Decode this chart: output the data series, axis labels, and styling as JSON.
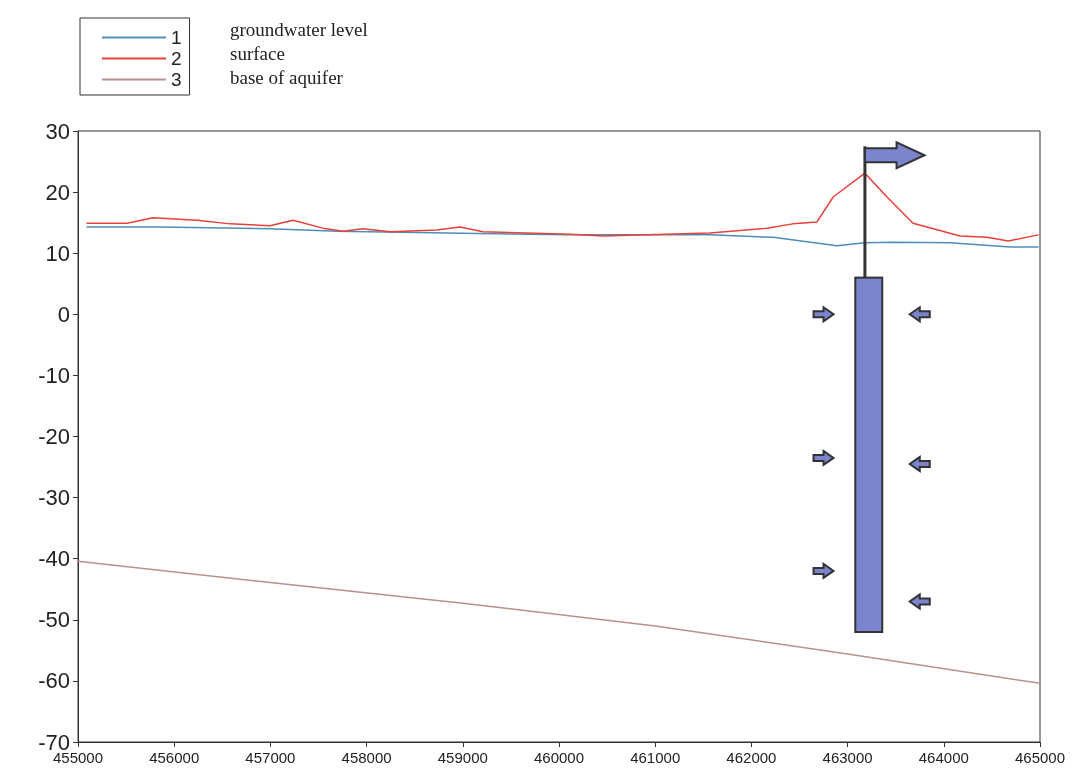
{
  "chart_data": {
    "type": "line",
    "xlim": [
      455000,
      465000
    ],
    "xticks": [
      455000,
      456000,
      457000,
      458000,
      459000,
      460000,
      461000,
      462000,
      463000,
      464000,
      465000
    ],
    "ylim": [
      -70,
      30
    ],
    "yticks": [
      -70,
      -60,
      -50,
      -40,
      -30,
      -20,
      -10,
      0,
      10,
      20,
      30
    ],
    "grid": false,
    "legend": "top left",
    "marker": "none",
    "line_style": "solid",
    "annotations": [
      "groundwater level",
      "surface",
      "base of aquifer"
    ],
    "series": [
      {
        "name": "1",
        "color": "#4a90b8",
        "x": [
          455094,
          455850,
          456995,
          457690,
          460115,
          461570,
          462225,
          462890,
          463180,
          463470,
          464065,
          464690,
          464980
        ],
        "values": [
          14.3,
          14.3,
          14.0,
          13.6,
          13.0,
          13.0,
          12.6,
          11.2,
          11.7,
          11.8,
          11.7,
          11.0,
          11.0
        ]
      },
      {
        "name": "2",
        "color": "#e8403a",
        "x": [
          455094,
          455510,
          455780,
          456240,
          456580,
          456995,
          457235,
          457545,
          457755,
          457960,
          458245,
          458730,
          458970,
          459210,
          460115,
          460460,
          461570,
          462160,
          462430,
          462680,
          462850,
          463180,
          463410,
          463680,
          464170,
          464450,
          464670,
          464980
        ],
        "values": [
          14.9,
          14.9,
          15.8,
          15.4,
          14.8,
          14.5,
          15.4,
          14.1,
          13.6,
          14.0,
          13.5,
          13.8,
          14.3,
          13.5,
          13.1,
          12.8,
          13.3,
          14.1,
          14.8,
          15.1,
          19.2,
          23.1,
          19.2,
          14.9,
          12.8,
          12.6,
          12.0,
          13.0
        ]
      },
      {
        "name": "3",
        "color": "#b89090",
        "x": [
          455000,
          457000,
          459000,
          461000,
          463000,
          465000
        ],
        "values": [
          -40.4,
          -43.9,
          -47.3,
          -51.0,
          -55.6,
          -60.4
        ]
      }
    ]
  }
}
